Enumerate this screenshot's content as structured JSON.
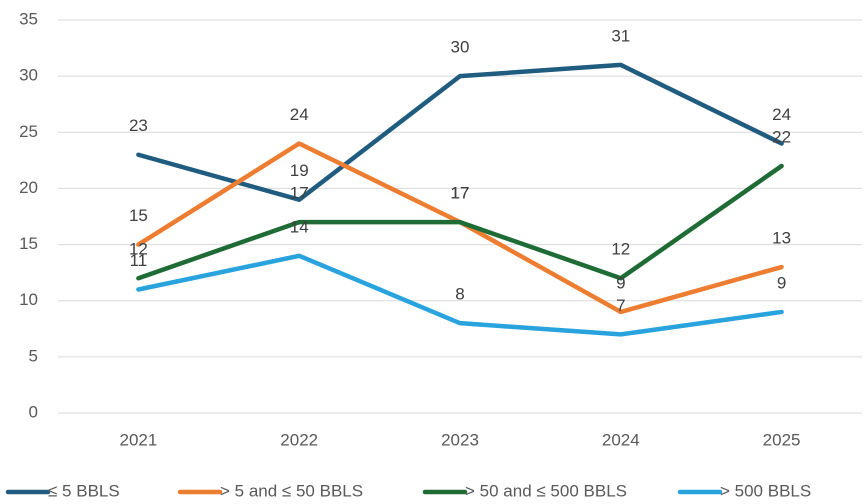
{
  "chart_data": {
    "type": "line",
    "categories": [
      "2021",
      "2022",
      "2023",
      "2024",
      "2025"
    ],
    "series": [
      {
        "name": "≤ 5 BBLS",
        "color": "#1f5c80",
        "values": [
          23,
          19,
          30,
          31,
          24
        ]
      },
      {
        "name": "> 5 and ≤ 50 BBLS",
        "color": "#ed7d31",
        "values": [
          15,
          24,
          17,
          9,
          13
        ]
      },
      {
        "name": "> 50 and ≤ 500 BBLS",
        "color": "#1e6b35",
        "values": [
          12,
          17,
          17,
          12,
          22
        ]
      },
      {
        "name": "> 500 BBLS",
        "color": "#29a3dd",
        "values": [
          11,
          14,
          8,
          7,
          9
        ]
      }
    ],
    "ylim": [
      0,
      35
    ],
    "yticks": [
      0,
      5,
      10,
      15,
      20,
      25,
      30,
      35
    ],
    "grid": true,
    "legend": "bottom"
  }
}
